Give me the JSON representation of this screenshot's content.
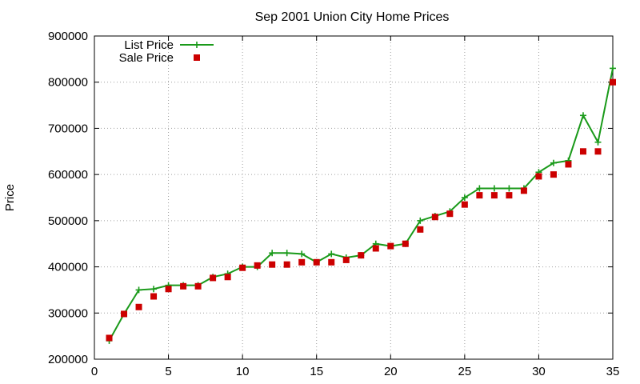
{
  "chart_data": {
    "type": "line",
    "title": "Sep 2001 Union City Home Prices",
    "xlabel": "",
    "ylabel": "Price",
    "xlim": [
      0,
      35
    ],
    "ylim": [
      200000,
      900000
    ],
    "x_ticks": [
      "0",
      "5",
      "10",
      "15",
      "20",
      "25",
      "30",
      "35"
    ],
    "y_ticks": [
      "200000",
      "300000",
      "400000",
      "500000",
      "600000",
      "700000",
      "800000",
      "900000"
    ],
    "grid": true,
    "legend_position": "top-left",
    "x": [
      1,
      2,
      3,
      4,
      5,
      6,
      7,
      8,
      9,
      10,
      11,
      12,
      13,
      14,
      15,
      16,
      17,
      18,
      19,
      20,
      21,
      22,
      23,
      24,
      25,
      26,
      27,
      28,
      29,
      30,
      31,
      32,
      33,
      34,
      35
    ],
    "series": [
      {
        "name": "List Price",
        "style": "line-with-plus-markers",
        "color": "#1a9a1a",
        "values": [
          240000,
          298000,
          350000,
          352000,
          360000,
          360000,
          360000,
          378000,
          385000,
          400000,
          400000,
          430000,
          430000,
          428000,
          410000,
          428000,
          420000,
          425000,
          450000,
          445000,
          450000,
          500000,
          510000,
          520000,
          550000,
          570000,
          570000,
          570000,
          570000,
          605000,
          625000,
          630000,
          728000,
          670000,
          830000
        ]
      },
      {
        "name": "Sale Price",
        "style": "square-markers",
        "color": "#cc0000",
        "values": [
          246000,
          298000,
          313000,
          336000,
          352000,
          358000,
          358000,
          376000,
          378000,
          398000,
          403000,
          405000,
          405000,
          410000,
          410000,
          410000,
          415000,
          425000,
          440000,
          445000,
          450000,
          481000,
          508000,
          515000,
          535000,
          555000,
          555000,
          555000,
          565000,
          596000,
          600000,
          622000,
          650000,
          650000,
          800000
        ]
      }
    ]
  }
}
